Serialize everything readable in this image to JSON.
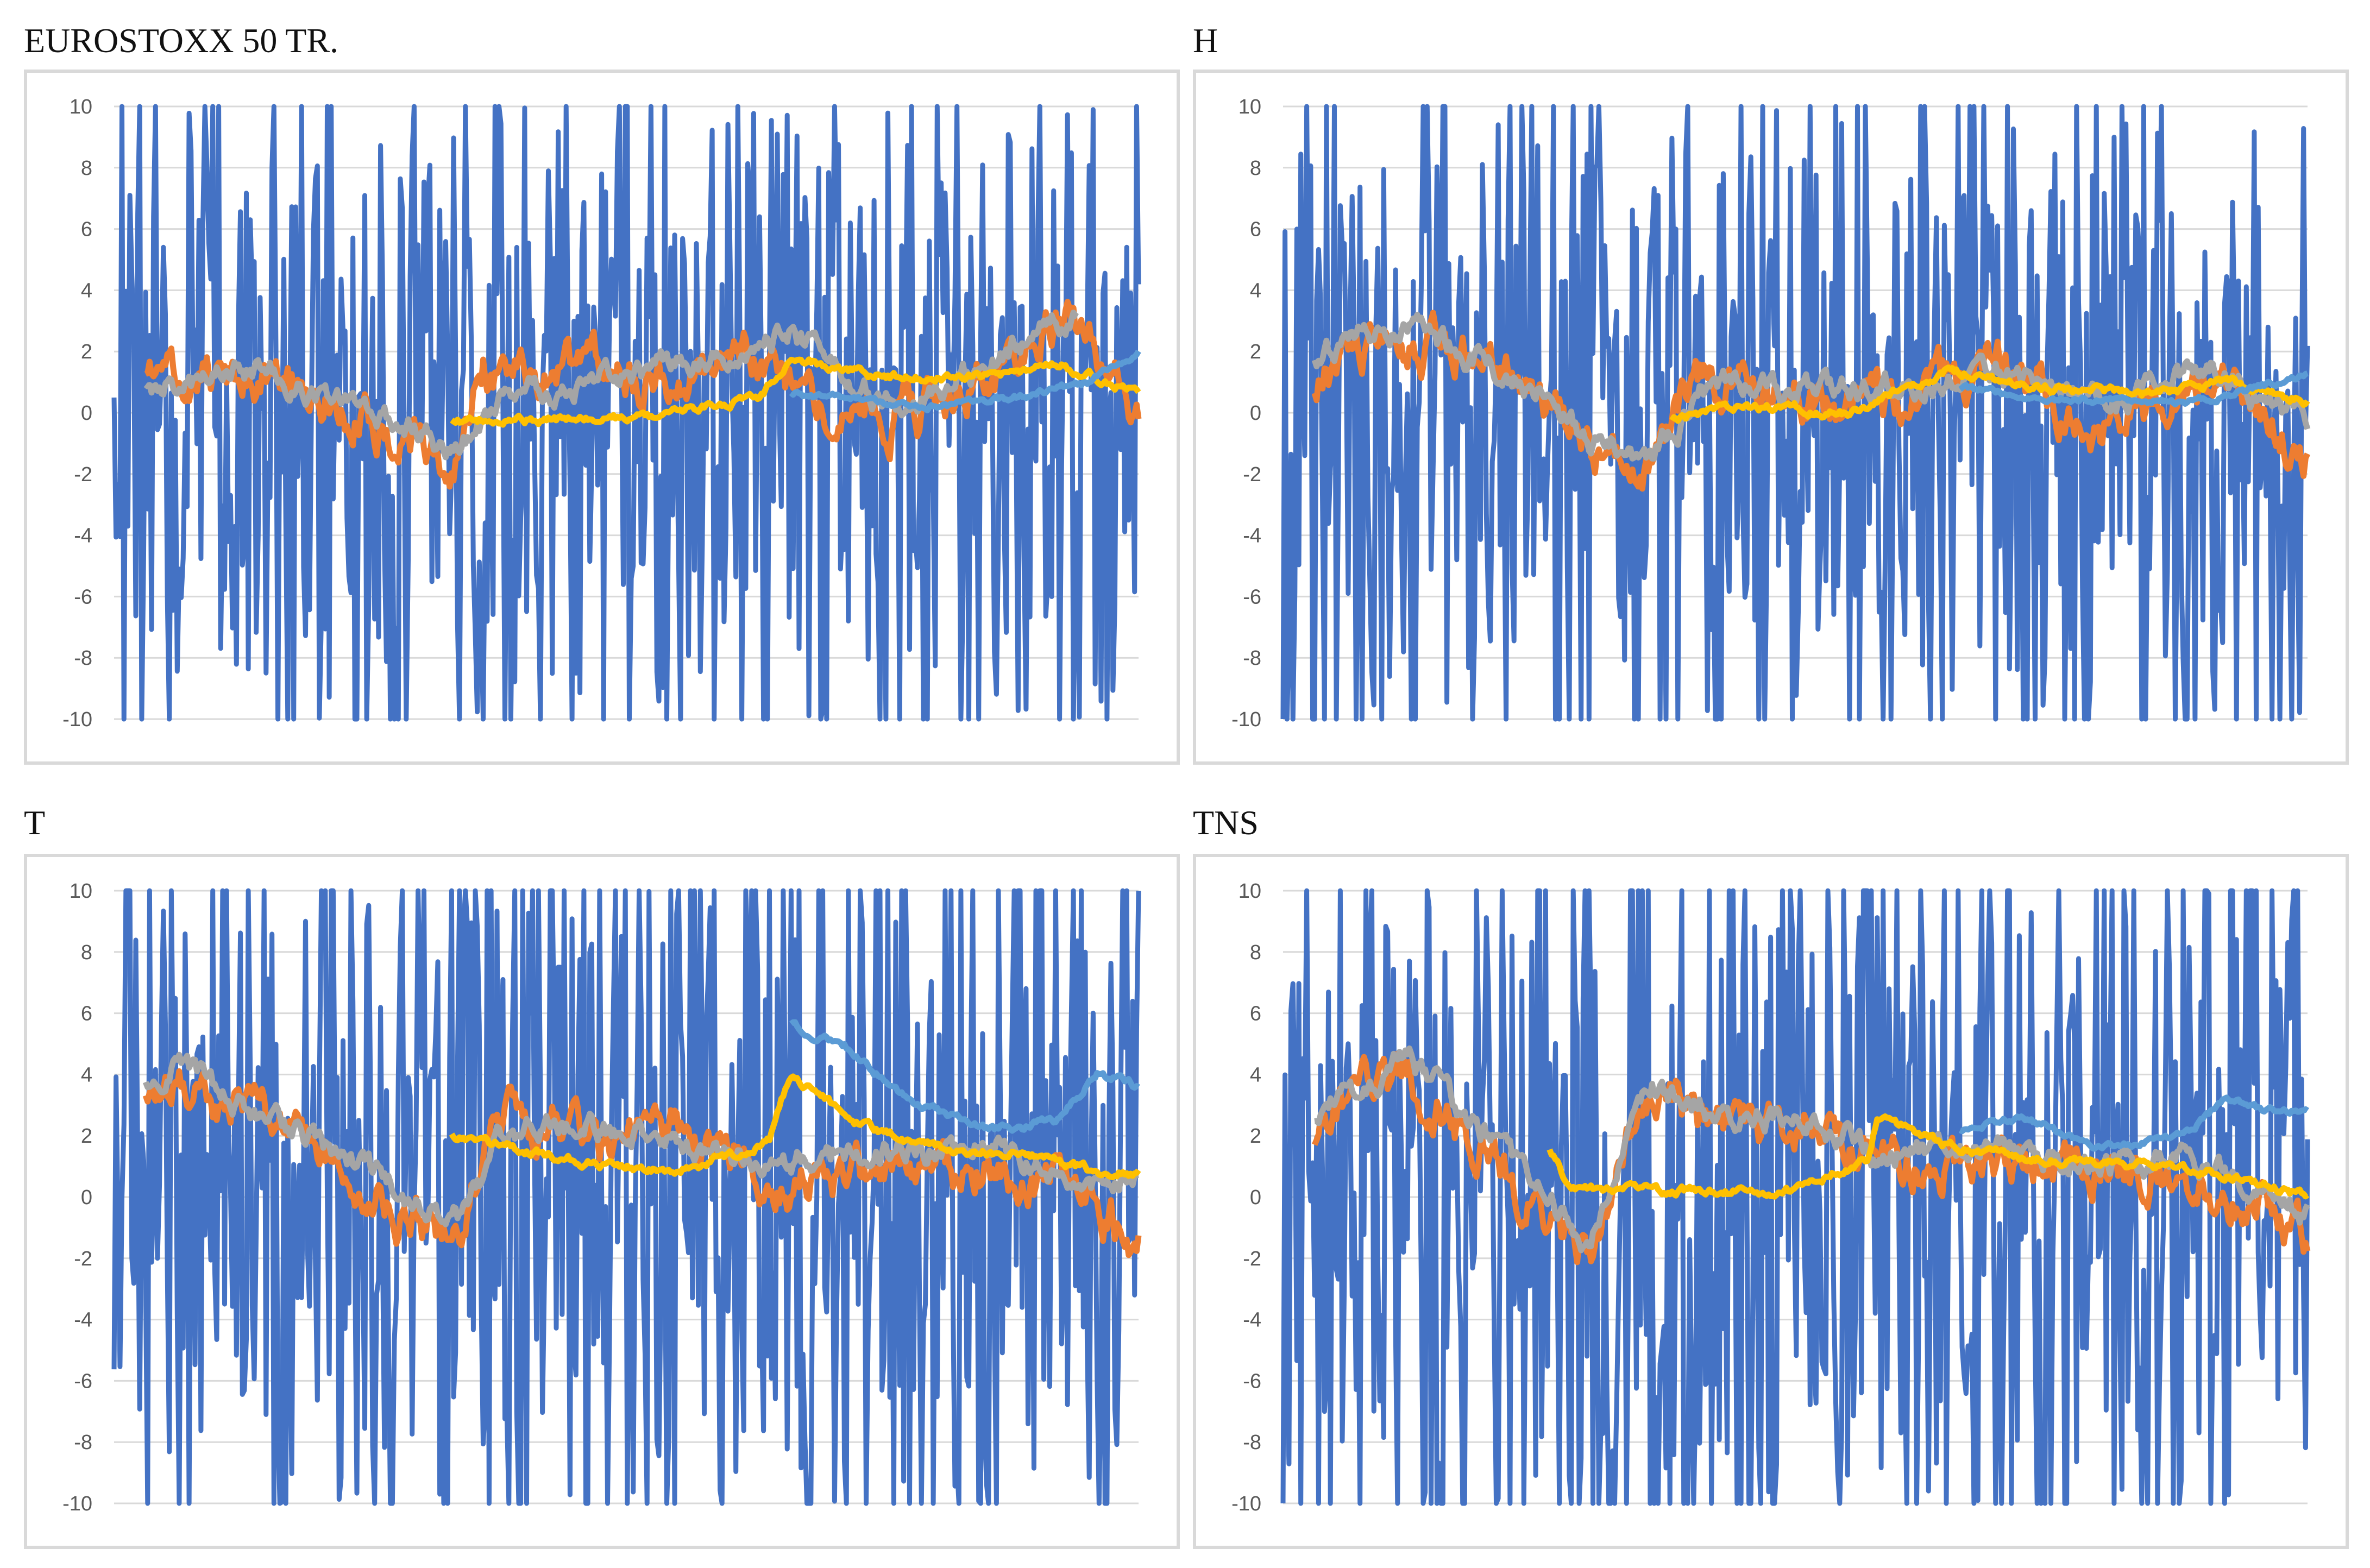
{
  "figure": {
    "colors": {
      "blue": "#4472c4",
      "orange": "#ed7d31",
      "gray": "#a5a5a5",
      "yellow": "#ffc000",
      "lightblue": "#5b9bd5",
      "grid": "#d9d9d9",
      "tick": "#595959"
    }
  },
  "chart_data": [
    {
      "type": "line",
      "title": "EUROSTOXX 50 TR.",
      "ylim": [
        -10,
        10
      ],
      "yticks": [
        "10",
        "8",
        "6",
        "4",
        "2",
        "0",
        "-2",
        "-4",
        "-6",
        "-8",
        "-10"
      ],
      "grid": true,
      "n_points": 520,
      "seed": 11,
      "series": [
        {
          "name": "blue",
          "kind": "noise",
          "amp": 5.8,
          "start": 0.0,
          "end": 1.0
        },
        {
          "name": "orange",
          "kind": "smooth",
          "level": [
            [
              0,
              1.0
            ],
            [
              0.15,
              1.2
            ],
            [
              0.3,
              -1.0
            ],
            [
              0.33,
              -1.8
            ],
            [
              0.36,
              1.5
            ],
            [
              0.55,
              1.2
            ],
            [
              0.62,
              1.8
            ],
            [
              0.72,
              -0.6
            ],
            [
              0.85,
              1.0
            ],
            [
              0.93,
              3.6
            ],
            [
              1.0,
              -0.4
            ]
          ],
          "noise": 1.1,
          "start": 0.03,
          "end": 1.0
        },
        {
          "name": "gray",
          "kind": "smooth",
          "level": [
            [
              0,
              0.6
            ],
            [
              0.15,
              1.4
            ],
            [
              0.3,
              -0.6
            ],
            [
              0.33,
              -1.4
            ],
            [
              0.38,
              0.5
            ],
            [
              0.5,
              1.2
            ],
            [
              0.66,
              2.6
            ],
            [
              0.75,
              0.3
            ],
            [
              0.85,
              1.5
            ],
            [
              0.93,
              3.2
            ],
            [
              1.0,
              1.2
            ]
          ],
          "noise": 0.6,
          "start": 0.03,
          "end": 0.94
        },
        {
          "name": "yellow",
          "kind": "smooth",
          "level": [
            [
              0.33,
              -0.3
            ],
            [
              0.5,
              -0.2
            ],
            [
              0.63,
              0.5
            ],
            [
              0.66,
              1.8
            ],
            [
              0.75,
              1.2
            ],
            [
              0.85,
              1.2
            ],
            [
              0.92,
              1.6
            ],
            [
              1.0,
              0.7
            ]
          ],
          "noise": 0.2,
          "start": 0.33,
          "end": 1.0
        },
        {
          "name": "lightblue",
          "kind": "smooth",
          "level": [
            [
              0.66,
              0.6
            ],
            [
              0.8,
              0.2
            ],
            [
              0.9,
              0.6
            ],
            [
              0.95,
              1.0
            ],
            [
              1.0,
              2.0
            ]
          ],
          "noise": 0.15,
          "start": 0.66,
          "end": 1.0
        }
      ]
    },
    {
      "type": "line",
      "title": "H",
      "ylim": [
        -10,
        10
      ],
      "yticks": [
        "10",
        "8",
        "6",
        "4",
        "2",
        "0",
        "-2",
        "-4",
        "-6",
        "-8",
        "-10"
      ],
      "grid": true,
      "n_points": 520,
      "seed": 23,
      "series": [
        {
          "name": "blue",
          "kind": "noise",
          "amp": 6.2,
          "start": 0.0,
          "end": 1.0
        },
        {
          "name": "orange",
          "kind": "smooth",
          "level": [
            [
              0,
              0.2
            ],
            [
              0.06,
              1.8
            ],
            [
              0.15,
              2.2
            ],
            [
              0.22,
              1.5
            ],
            [
              0.3,
              -1.2
            ],
            [
              0.36,
              -1.8
            ],
            [
              0.4,
              1.2
            ],
            [
              0.5,
              0.5
            ],
            [
              0.6,
              0.3
            ],
            [
              0.7,
              1.5
            ],
            [
              0.8,
              -0.5
            ],
            [
              0.88,
              1.0
            ],
            [
              0.94,
              0.5
            ],
            [
              1.0,
              -1.5
            ]
          ],
          "noise": 1.1,
          "start": 0.03,
          "end": 1.0
        },
        {
          "name": "gray",
          "kind": "smooth",
          "level": [
            [
              0,
              1.5
            ],
            [
              0.1,
              2.8
            ],
            [
              0.16,
              2.2
            ],
            [
              0.25,
              0.8
            ],
            [
              0.3,
              -1.0
            ],
            [
              0.36,
              -1.4
            ],
            [
              0.42,
              1.0
            ],
            [
              0.5,
              0.6
            ],
            [
              0.6,
              0.8
            ],
            [
              0.7,
              1.2
            ],
            [
              0.82,
              0.5
            ],
            [
              0.9,
              1.6
            ],
            [
              0.96,
              0.4
            ],
            [
              1.0,
              -0.6
            ]
          ],
          "noise": 0.6,
          "start": 0.03,
          "end": 1.0
        },
        {
          "name": "yellow",
          "kind": "smooth",
          "level": [
            [
              0.38,
              -0.2
            ],
            [
              0.45,
              0.2
            ],
            [
              0.55,
              0.0
            ],
            [
              0.65,
              1.4
            ],
            [
              0.75,
              0.8
            ],
            [
              0.85,
              0.6
            ],
            [
              0.92,
              1.0
            ],
            [
              1.0,
              0.4
            ]
          ],
          "noise": 0.2,
          "start": 0.38,
          "end": 1.0
        },
        {
          "name": "lightblue",
          "kind": "smooth",
          "level": [
            [
              0.66,
              0.8
            ],
            [
              0.78,
              0.4
            ],
            [
              0.88,
              0.3
            ],
            [
              0.95,
              0.8
            ],
            [
              1.0,
              1.3
            ]
          ],
          "noise": 0.15,
          "start": 0.66,
          "end": 1.0
        }
      ]
    },
    {
      "type": "line",
      "title": "T",
      "ylim": [
        -10,
        10
      ],
      "yticks": [
        "10",
        "8",
        "6",
        "4",
        "2",
        "0",
        "-2",
        "-4",
        "-6",
        "-8",
        "-10"
      ],
      "grid": true,
      "n_points": 520,
      "seed": 37,
      "series": [
        {
          "name": "blue",
          "kind": "noise",
          "amp": 7.2,
          "start": 0.0,
          "end": 1.0
        },
        {
          "name": "orange",
          "kind": "smooth",
          "level": [
            [
              0,
              2.5
            ],
            [
              0.05,
              3.5
            ],
            [
              0.12,
              3.0
            ],
            [
              0.22,
              1.0
            ],
            [
              0.3,
              -1.0
            ],
            [
              0.34,
              -1.2
            ],
            [
              0.38,
              3.0
            ],
            [
              0.48,
              1.5
            ],
            [
              0.55,
              2.5
            ],
            [
              0.65,
              0.5
            ],
            [
              0.75,
              0.5
            ],
            [
              0.85,
              1.0
            ],
            [
              0.95,
              0.0
            ],
            [
              1.0,
              -1.5
            ]
          ],
          "noise": 1.1,
          "start": 0.03,
          "end": 1.0
        },
        {
          "name": "gray",
          "kind": "smooth",
          "level": [
            [
              0,
              3.0
            ],
            [
              0.06,
              4.2
            ],
            [
              0.12,
              3.2
            ],
            [
              0.22,
              1.5
            ],
            [
              0.3,
              -0.4
            ],
            [
              0.34,
              -0.8
            ],
            [
              0.38,
              2.2
            ],
            [
              0.48,
              2.2
            ],
            [
              0.55,
              1.8
            ],
            [
              0.65,
              1.2
            ],
            [
              0.75,
              1.4
            ],
            [
              0.85,
              1.8
            ],
            [
              0.95,
              0.4
            ],
            [
              1.0,
              0.5
            ]
          ],
          "noise": 0.6,
          "start": 0.03,
          "end": 1.0
        },
        {
          "name": "yellow",
          "kind": "smooth",
          "level": [
            [
              0.33,
              2.0
            ],
            [
              0.45,
              1.2
            ],
            [
              0.55,
              0.8
            ],
            [
              0.64,
              1.8
            ],
            [
              0.66,
              4.0
            ],
            [
              0.72,
              2.5
            ],
            [
              0.8,
              1.6
            ],
            [
              0.9,
              1.4
            ],
            [
              0.96,
              0.8
            ],
            [
              1.0,
              0.8
            ]
          ],
          "noise": 0.2,
          "start": 0.33,
          "end": 1.0
        },
        {
          "name": "lightblue",
          "kind": "smooth",
          "level": [
            [
              0.66,
              5.6
            ],
            [
              0.72,
              4.8
            ],
            [
              0.78,
              3.0
            ],
            [
              0.85,
              2.2
            ],
            [
              0.92,
              2.4
            ],
            [
              0.96,
              4.0
            ],
            [
              1.0,
              3.6
            ]
          ],
          "noise": 0.2,
          "start": 0.66,
          "end": 1.0
        }
      ]
    },
    {
      "type": "line",
      "title": "TNS",
      "ylim": [
        -10,
        10
      ],
      "yticks": [
        "10",
        "8",
        "6",
        "4",
        "2",
        "0",
        "-2",
        "-4",
        "-6",
        "-8",
        "-10"
      ],
      "grid": true,
      "n_points": 520,
      "seed": 51,
      "series": [
        {
          "name": "blue",
          "kind": "noise",
          "amp": 7.2,
          "start": 0.0,
          "end": 1.0
        },
        {
          "name": "orange",
          "kind": "smooth",
          "level": [
            [
              0,
              1.0
            ],
            [
              0.06,
              3.0
            ],
            [
              0.12,
              4.0
            ],
            [
              0.2,
              1.5
            ],
            [
              0.26,
              -1.0
            ],
            [
              0.3,
              -1.8
            ],
            [
              0.36,
              3.5
            ],
            [
              0.42,
              2.0
            ],
            [
              0.52,
              2.2
            ],
            [
              0.58,
              1.0
            ],
            [
              0.68,
              1.0
            ],
            [
              0.78,
              1.2
            ],
            [
              0.88,
              0.8
            ],
            [
              0.96,
              -0.5
            ],
            [
              1.0,
              -1.2
            ]
          ],
          "noise": 1.1,
          "start": 0.03,
          "end": 1.0
        },
        {
          "name": "gray",
          "kind": "smooth",
          "level": [
            [
              0,
              2.0
            ],
            [
              0.06,
              3.2
            ],
            [
              0.12,
              4.6
            ],
            [
              0.2,
              2.0
            ],
            [
              0.26,
              -0.2
            ],
            [
              0.3,
              -1.4
            ],
            [
              0.36,
              3.6
            ],
            [
              0.42,
              2.8
            ],
            [
              0.52,
              2.6
            ],
            [
              0.58,
              1.4
            ],
            [
              0.68,
              1.6
            ],
            [
              0.78,
              1.0
            ],
            [
              0.88,
              1.2
            ],
            [
              0.96,
              0.2
            ],
            [
              1.0,
              -0.6
            ]
          ],
          "noise": 0.6,
          "start": 0.03,
          "end": 1.0
        },
        {
          "name": "yellow",
          "kind": "smooth",
          "level": [
            [
              0.26,
              1.6
            ],
            [
              0.28,
              0.2
            ],
            [
              0.4,
              0.2
            ],
            [
              0.5,
              0.2
            ],
            [
              0.57,
              1.2
            ],
            [
              0.58,
              2.6
            ],
            [
              0.66,
              1.6
            ],
            [
              0.76,
              1.2
            ],
            [
              0.86,
              1.0
            ],
            [
              0.94,
              0.6
            ],
            [
              1.0,
              0.0
            ]
          ],
          "noise": 0.2,
          "start": 0.26,
          "end": 1.0
        },
        {
          "name": "lightblue",
          "kind": "smooth",
          "level": [
            [
              0.66,
              2.2
            ],
            [
              0.72,
              2.6
            ],
            [
              0.8,
              1.6
            ],
            [
              0.88,
              2.0
            ],
            [
              0.92,
              3.2
            ],
            [
              0.96,
              2.8
            ],
            [
              1.0,
              2.8
            ]
          ],
          "noise": 0.15,
          "start": 0.66,
          "end": 1.0
        }
      ]
    }
  ]
}
